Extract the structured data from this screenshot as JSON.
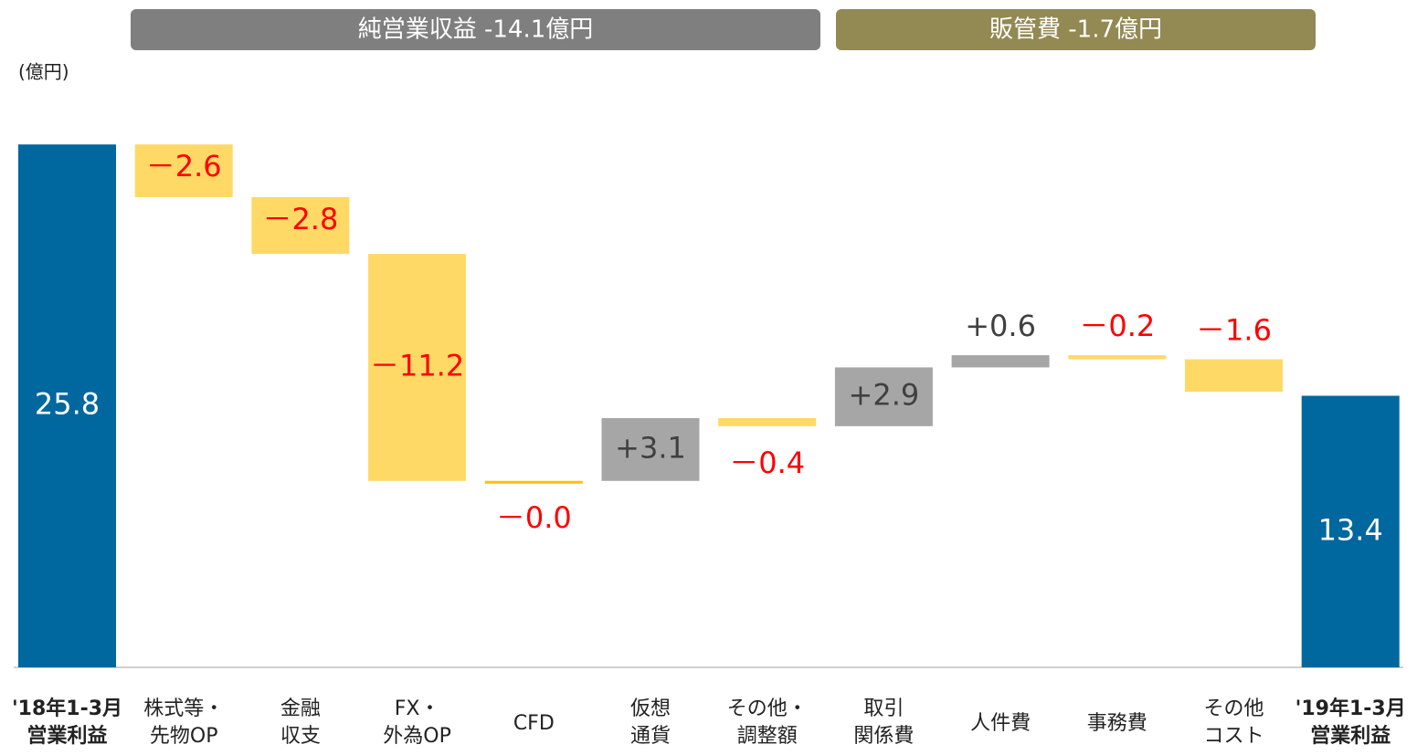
{
  "chart_data": {
    "type": "waterfall",
    "unit_label": "(億円)",
    "groups": [
      {
        "label": "純営業収益 -14.1億円",
        "color": "#7f7f7f"
      },
      {
        "label": "販管費 -1.7億円",
        "color": "#938953"
      }
    ],
    "categories": [
      [
        "'18年1-3月",
        "営業利益"
      ],
      [
        "株式等・",
        "先物OP"
      ],
      [
        "金融",
        "収支"
      ],
      [
        "FX・",
        "外為OP"
      ],
      [
        "CFD"
      ],
      [
        "仮想",
        "通貨"
      ],
      [
        "その他・",
        "調整額"
      ],
      [
        "取引",
        "関係費"
      ],
      [
        "人件費"
      ],
      [
        "事務費"
      ],
      [
        "その他",
        "コスト"
      ],
      [
        "'19年1-3月",
        "営業利益"
      ]
    ],
    "values": [
      25.8,
      -2.6,
      -2.8,
      -11.2,
      -0.0,
      3.1,
      -0.4,
      2.9,
      0.6,
      -0.2,
      -1.6,
      13.4
    ],
    "value_labels": [
      "25.8",
      "－2.6",
      "－2.8",
      "－11.2",
      "－0.0",
      "+3.1",
      "－0.4",
      "+2.9",
      "+0.6",
      "－0.2",
      "－1.6",
      "13.4"
    ],
    "colors": [
      "#00679f",
      "#ffd966",
      "#ffd966",
      "#ffd966",
      "#ffc000",
      "#a6a6a6",
      "#ffd966",
      "#a6a6a6",
      "#a6a6a6",
      "#ffd966",
      "#ffd966",
      "#00679f"
    ],
    "label_colors": [
      "#ffffff",
      "#ff0000",
      "#ff0000",
      "#ff0000",
      "#ff0000",
      "#404040",
      "#ff0000",
      "#404040",
      "#404040",
      "#ff0000",
      "#ff0000",
      "#ffffff"
    ],
    "totals": [
      0,
      11
    ]
  }
}
